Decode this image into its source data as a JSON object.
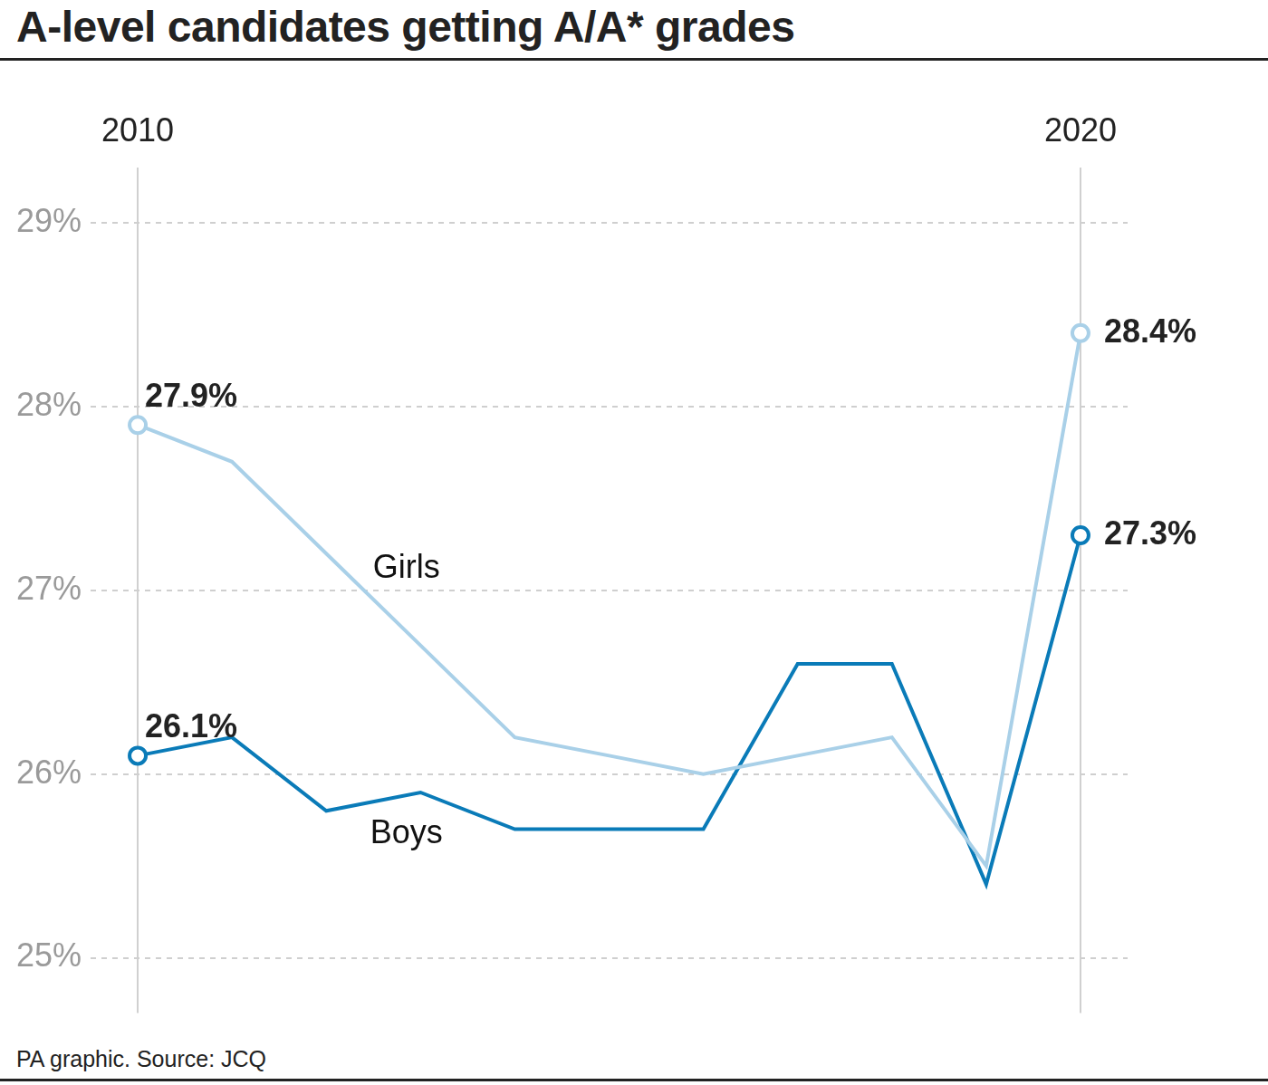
{
  "chart_data": {
    "type": "line",
    "title": "A-level candidates getting A/A* grades",
    "source": "PA graphic. Source: JCQ",
    "categories": [
      "2010",
      null,
      null,
      null,
      null,
      null,
      null,
      null,
      null,
      null,
      "2020"
    ],
    "series": [
      {
        "name": "Girls",
        "color": "#a9d0e8",
        "marker": "circle",
        "values": [
          27.9,
          27.7,
          27.2,
          26.7,
          26.2,
          26.1,
          26.0,
          26.1,
          26.2,
          25.5,
          28.4
        ],
        "value_labels": [
          "27.9%",
          null,
          null,
          null,
          null,
          null,
          null,
          null,
          null,
          null,
          "28.4%"
        ]
      },
      {
        "name": "Boys",
        "color": "#0a7bb8",
        "marker": "circle",
        "values": [
          26.1,
          26.2,
          25.8,
          25.9,
          25.7,
          25.7,
          25.7,
          26.6,
          26.6,
          25.4,
          27.3
        ],
        "value_labels": [
          "26.1%",
          null,
          null,
          null,
          null,
          null,
          null,
          null,
          null,
          null,
          "27.3%"
        ]
      }
    ],
    "ylim": [
      24.7,
      29.3
    ],
    "yticks": [
      {
        "value": 25,
        "label": "25%"
      },
      {
        "value": 26,
        "label": "26%"
      },
      {
        "value": 27,
        "label": "27%"
      },
      {
        "value": 28,
        "label": "28%"
      },
      {
        "value": 29,
        "label": "29%"
      }
    ],
    "grid": true,
    "data_labels": true
  }
}
